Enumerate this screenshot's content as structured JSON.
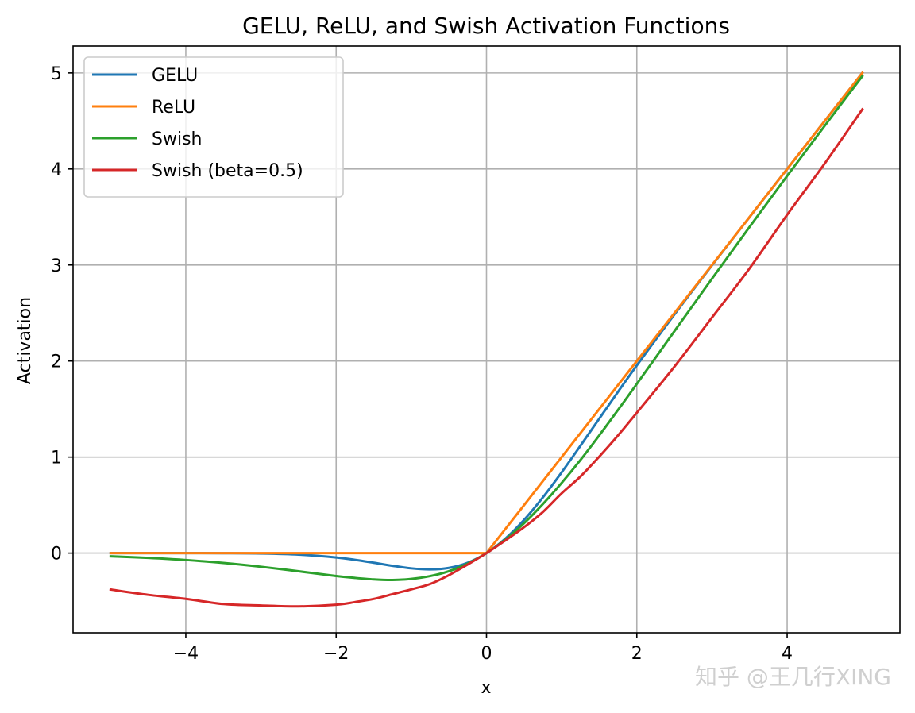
{
  "chart_data": {
    "type": "line",
    "title": "GELU, ReLU, and Swish Activation Functions",
    "xlabel": "x",
    "ylabel": "Activation",
    "xlim": [
      -5.5,
      5.5
    ],
    "ylim": [
      -0.83,
      5.28
    ],
    "xticks": [
      -4,
      -2,
      0,
      2,
      4
    ],
    "xtick_labels": [
      "−4",
      "−2",
      "0",
      "2",
      "4"
    ],
    "yticks": [
      0,
      1,
      2,
      3,
      4,
      5
    ],
    "ytick_labels": [
      "0",
      "1",
      "2",
      "3",
      "4",
      "5"
    ],
    "grid": true,
    "legend_position": "top-left",
    "x": [
      -5,
      -4.5,
      -4,
      -3.5,
      -3,
      -2.5,
      -2,
      -1.75,
      -1.5,
      -1.25,
      -1,
      -0.75,
      -0.5,
      -0.25,
      0,
      0.25,
      0.5,
      0.75,
      1,
      1.25,
      1.5,
      1.75,
      2,
      2.5,
      3,
      3.5,
      4,
      4.5,
      5
    ],
    "series": [
      {
        "name": "GELU",
        "color": "#1f77b4",
        "values": [
          0.0,
          0.0,
          -0.0001,
          -0.0008,
          -0.004,
          -0.0155,
          -0.0455,
          -0.0702,
          -0.1002,
          -0.132,
          -0.1587,
          -0.17,
          -0.1543,
          -0.1003,
          0.0,
          0.1497,
          0.3457,
          0.58,
          0.8413,
          1.118,
          1.3998,
          1.6798,
          1.9545,
          2.4845,
          2.996,
          3.4992,
          3.9999,
          4.5,
          5.0
        ]
      },
      {
        "name": "ReLU",
        "color": "#ff7f0e",
        "values": [
          0,
          0,
          0,
          0,
          0,
          0,
          0,
          0,
          0,
          0,
          0,
          0,
          0,
          0,
          0,
          0.25,
          0.5,
          0.75,
          1,
          1.25,
          1.5,
          1.75,
          2,
          2.5,
          3,
          3.5,
          4,
          4.5,
          5
        ]
      },
      {
        "name": "Swish",
        "color": "#2ca02c",
        "values": [
          -0.0335,
          -0.0496,
          -0.0719,
          -0.1026,
          -0.1423,
          -0.1896,
          -0.2384,
          -0.2584,
          -0.2741,
          -0.2805,
          -0.2689,
          -0.2396,
          -0.1888,
          -0.1097,
          0.0,
          0.1403,
          0.3112,
          0.5104,
          0.7311,
          0.9695,
          1.2259,
          1.4916,
          1.7616,
          2.3104,
          2.8577,
          3.3974,
          3.9281,
          4.4502,
          4.9665
        ]
      },
      {
        "name": "Swish (beta=0.5)",
        "color": "#d62728",
        "values": [
          -0.3796,
          -0.4347,
          -0.4768,
          -0.5306,
          -0.5459,
          -0.5553,
          -0.5379,
          -0.5102,
          -0.4771,
          -0.4277,
          -0.3775,
          -0.3217,
          -0.2298,
          -0.1185,
          0.0,
          0.1315,
          0.2701,
          0.4281,
          0.6225,
          0.7978,
          1.0046,
          1.2253,
          1.4621,
          1.9415,
          2.4528,
          2.9654,
          3.5232,
          4.0576,
          4.6207
        ]
      }
    ]
  },
  "watermark": "知乎 @王几行XING"
}
